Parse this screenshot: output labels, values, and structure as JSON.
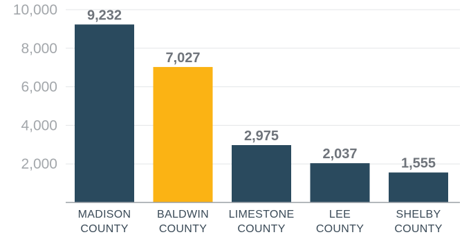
{
  "chart_data": {
    "type": "bar",
    "categories": [
      [
        "MADISON",
        "COUNTY"
      ],
      [
        "BALDWIN",
        "COUNTY"
      ],
      [
        "LIMESTONE",
        "COUNTY"
      ],
      [
        "LEE",
        "COUNTY"
      ],
      [
        "SHELBY",
        "COUNTY"
      ]
    ],
    "values": [
      9232,
      7027,
      2975,
      2037,
      1555
    ],
    "data_labels": [
      "9,232",
      "7,027",
      "2,975",
      "2,037",
      "1,555"
    ],
    "yticks": [
      2000,
      4000,
      6000,
      8000,
      10000
    ],
    "ytick_labels": [
      "2,000",
      "4,000",
      "6,000",
      "8,000",
      "10,000"
    ],
    "ylim": [
      0,
      10000
    ],
    "grid": true,
    "bar_colors": [
      "#2a4a5e",
      "#fbb314",
      "#2a4a5e",
      "#2a4a5e",
      "#2a4a5e"
    ],
    "title": "",
    "xlabel": "",
    "ylabel": ""
  }
}
